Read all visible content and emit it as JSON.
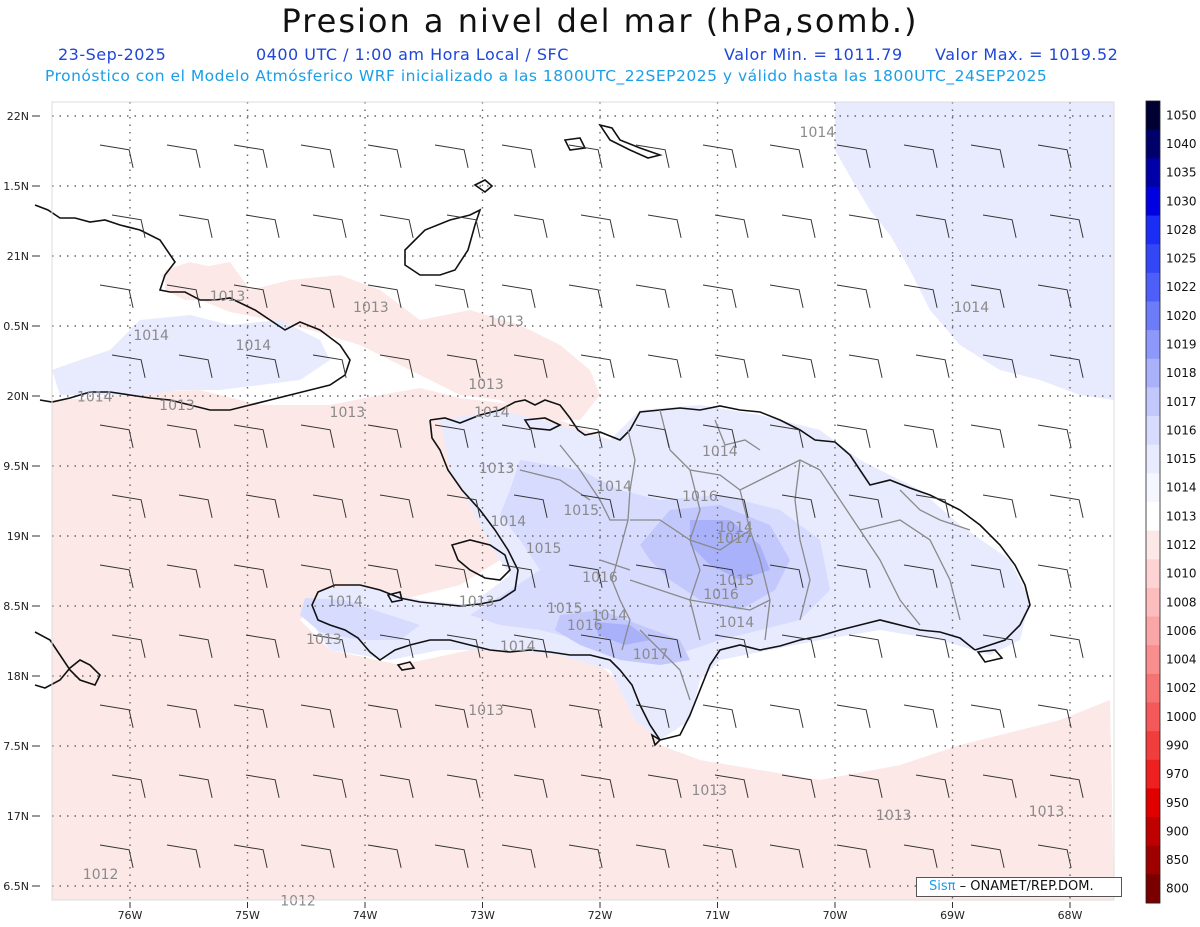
{
  "header": {
    "title": "Presion a nivel del mar (hPa,somb.)",
    "date": "23-Sep-2025",
    "time": "0400 UTC / 1:00 am Hora Local / SFC",
    "min_label": "Valor Min. = 1011.79",
    "max_label": "Valor Max. = 1019.52",
    "model_line": "Pronóstico con el Modelo Atmósferico WRF inicializado a las 1800UTC_22SEP2025 y válido hasta las  1800UTC_24SEP2025"
  },
  "map": {
    "lon_range": [
      -76.65,
      -67.5
    ],
    "lat_range": [
      16.4,
      22.1
    ],
    "lat_ticks": [
      "22N",
      "1.5N",
      "21N",
      "0.5N",
      "20N",
      "9.5N",
      "19N",
      "8.5N",
      "18N",
      "7.5N",
      "17N",
      "6.5N"
    ],
    "lon_ticks": [
      "76W",
      "75W",
      "74W",
      "73W",
      "72W",
      "71W",
      "70W",
      "69W",
      "68W"
    ],
    "contour_labels": [
      {
        "text": "1014",
        "lon": -70.15,
        "lat": 21.85
      },
      {
        "text": "1013",
        "lon": -75.17,
        "lat": 20.68
      },
      {
        "text": "1013",
        "lon": -73.95,
        "lat": 20.6
      },
      {
        "text": "1013",
        "lon": -72.8,
        "lat": 20.5
      },
      {
        "text": "1014",
        "lon": -75.82,
        "lat": 20.4
      },
      {
        "text": "1014",
        "lon": -74.95,
        "lat": 20.33
      },
      {
        "text": "1014",
        "lon": -68.84,
        "lat": 20.6
      },
      {
        "text": "1014",
        "lon": -76.3,
        "lat": 19.96
      },
      {
        "text": "1013",
        "lon": -75.6,
        "lat": 19.9
      },
      {
        "text": "1013",
        "lon": -74.15,
        "lat": 19.85
      },
      {
        "text": "1013",
        "lon": -72.97,
        "lat": 20.05
      },
      {
        "text": "1014",
        "lon": -72.92,
        "lat": 19.85
      },
      {
        "text": "1014",
        "lon": -70.98,
        "lat": 19.57
      },
      {
        "text": "1013",
        "lon": -72.88,
        "lat": 19.45
      },
      {
        "text": "1014",
        "lon": -71.88,
        "lat": 19.32
      },
      {
        "text": "1016",
        "lon": -71.15,
        "lat": 19.25
      },
      {
        "text": "1015",
        "lon": -72.16,
        "lat": 19.15
      },
      {
        "text": "1014",
        "lon": -72.78,
        "lat": 19.07
      },
      {
        "text": "1014",
        "lon": -70.85,
        "lat": 19.03
      },
      {
        "text": "1017",
        "lon": -70.86,
        "lat": 18.95
      },
      {
        "text": "1015",
        "lon": -72.48,
        "lat": 18.88
      },
      {
        "text": "1016",
        "lon": -72.0,
        "lat": 18.67
      },
      {
        "text": "1015",
        "lon": -70.84,
        "lat": 18.65
      },
      {
        "text": "1016",
        "lon": -70.97,
        "lat": 18.55
      },
      {
        "text": "1014",
        "lon": -74.17,
        "lat": 18.5
      },
      {
        "text": "1013",
        "lon": -73.05,
        "lat": 18.5
      },
      {
        "text": "1015",
        "lon": -72.3,
        "lat": 18.45
      },
      {
        "text": "1014",
        "lon": -71.92,
        "lat": 18.4
      },
      {
        "text": "1016",
        "lon": -72.13,
        "lat": 18.33
      },
      {
        "text": "1014",
        "lon": -70.84,
        "lat": 18.35
      },
      {
        "text": "1013",
        "lon": -74.35,
        "lat": 18.23
      },
      {
        "text": "1014",
        "lon": -72.7,
        "lat": 18.18
      },
      {
        "text": "1017",
        "lon": -71.57,
        "lat": 18.12
      },
      {
        "text": "1013",
        "lon": -72.97,
        "lat": 17.72
      },
      {
        "text": "1013",
        "lon": -71.07,
        "lat": 17.15
      },
      {
        "text": "1013",
        "lon": -69.5,
        "lat": 16.97
      },
      {
        "text": "1013",
        "lon": -68.2,
        "lat": 17.0
      },
      {
        "text": "1012",
        "lon": -76.25,
        "lat": 16.55
      },
      {
        "text": "1012",
        "lon": -74.57,
        "lat": 16.36
      }
    ]
  },
  "colorbar": {
    "labels": [
      "1050",
      "1040",
      "1035",
      "1030",
      "1028",
      "1025",
      "1022",
      "1020",
      "1019",
      "1018",
      "1017",
      "1016",
      "1015",
      "1014",
      "1013",
      "1012",
      "1010",
      "1008",
      "1006",
      "1004",
      "1002",
      "1000",
      "990",
      "970",
      "950",
      "900",
      "850",
      "800"
    ],
    "colors": [
      "#000033",
      "#00006b",
      "#0000a8",
      "#0000e0",
      "#1a2ef5",
      "#3347f7",
      "#4d5ff8",
      "#6d7cf9",
      "#8d98fa",
      "#a9b1fb",
      "#c2c8fc",
      "#d7dbfd",
      "#e8eafe",
      "#f5f6ff",
      "#ffffff",
      "#fde8e8",
      "#fdd3d3",
      "#fcbdbd",
      "#faa6a6",
      "#f88e8e",
      "#f67373",
      "#f45858",
      "#f23d3d",
      "#ef2020",
      "#e00000",
      "#bf0000",
      "#9e0000",
      "#7a0000"
    ]
  },
  "credit": {
    "brand": "Sisπ",
    "org": "– ONAMET/REP.DOM."
  },
  "colors": {
    "title": "#111111",
    "blue_text": "#1f46d8",
    "cyan_text": "#1a9ee8",
    "pink_fill": "#fde8e8",
    "lavender_fill": "#e8eafe"
  }
}
